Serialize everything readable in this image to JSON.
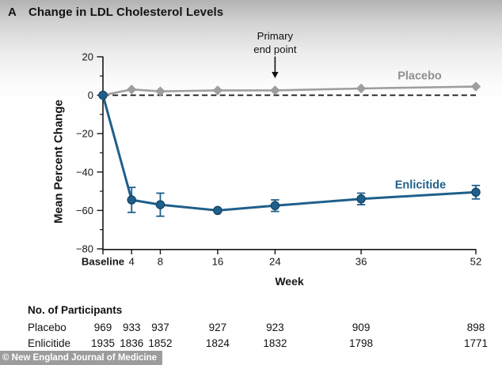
{
  "title": {
    "panel_label": "A",
    "text": "Change in LDL Cholesterol Levels"
  },
  "chart_data": {
    "type": "line",
    "x": [
      0,
      4,
      8,
      16,
      24,
      36,
      52
    ],
    "x_tick_labels": [
      "Baseline",
      "4",
      "8",
      "16",
      "24",
      "36",
      "52"
    ],
    "xlabel": "Week",
    "ylabel": "Mean Percent Change",
    "ylim": [
      -80,
      20
    ],
    "y_ticks": [
      20,
      0,
      -20,
      -40,
      -60,
      -80
    ],
    "y_minor_ticks": [
      10,
      -10,
      -30,
      -50,
      -70
    ],
    "zero_reference_line": "dashed",
    "legend_position": "inline-right",
    "series": [
      {
        "name": "Placebo",
        "color": "#9e9e9e",
        "marker": "diamond",
        "values": [
          0,
          3,
          2,
          2.5,
          2.5,
          3.5,
          4.5
        ],
        "errors": [
          0,
          0,
          0,
          0,
          0,
          0,
          0
        ]
      },
      {
        "name": "Enlicitide",
        "color": "#1f5f8b",
        "marker": "circle",
        "values": [
          0,
          -54.5,
          -57,
          -60,
          -57.5,
          -54,
          -50.5
        ],
        "errors": [
          0,
          6.5,
          6,
          0,
          3,
          3,
          3.5
        ]
      }
    ],
    "annotation": {
      "line1": "Primary",
      "line2": "end point",
      "x_week": 24
    }
  },
  "participants": {
    "header": "No. of Participants",
    "rows": [
      {
        "label": "Placebo",
        "values": [
          "969",
          "933",
          "937",
          "927",
          "923",
          "909",
          "898"
        ]
      },
      {
        "label": "Enlicitide",
        "values": [
          "1935",
          "1836",
          "1852",
          "1824",
          "1832",
          "1798",
          "1771"
        ]
      }
    ]
  },
  "footer": {
    "credit": "© New England Journal of Medicine"
  },
  "colors": {
    "axis_text": "#161616",
    "placebo_line": "#9e9e9e",
    "placebo_label": "#8f8f8f",
    "enlicitide": "#1f5f8b",
    "enlicitide_marker_edge": "#123f5c",
    "credit_bar_bg": "#9c9c9c"
  }
}
